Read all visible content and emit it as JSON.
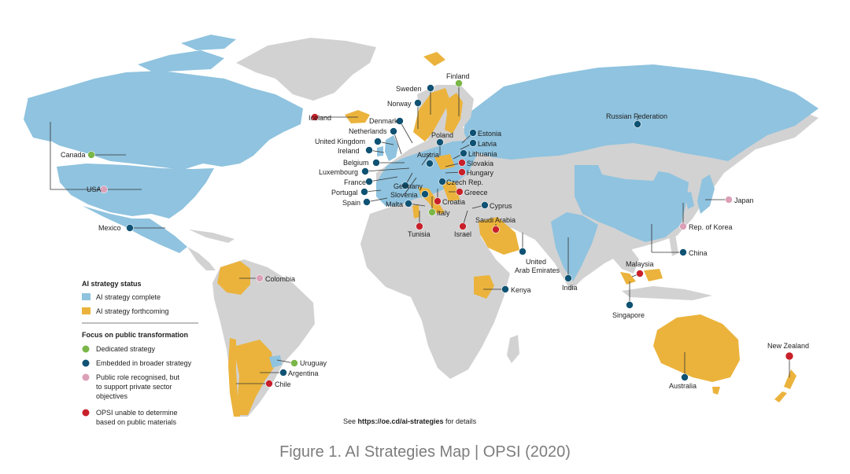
{
  "colors": {
    "land": "#d2d2d2",
    "complete": "#8fc3df",
    "forthcoming": "#ebb33c",
    "dedicated": "#7ab648",
    "embedded": "#0f5273",
    "public_role": "#dba0b7",
    "opsi_unable": "#c8202a",
    "leader_line": "#333333"
  },
  "legend": {
    "status_title": "AI strategy status",
    "complete": "AI strategy complete",
    "forthcoming": "AI strategy forthcoming",
    "focus_title": "Focus on public transformation",
    "dedicated": "Dedicated strategy",
    "embedded": "Embedded in broader strategy",
    "public_role_1": "Public role recognised, but",
    "public_role_2": "to support private sector",
    "public_role_3": "objectives",
    "opsi_1": "OPSI unable to determine",
    "opsi_2": "based on public materials"
  },
  "note": {
    "prefix": "See ",
    "link": "https://oe.cd/ai-strategies",
    "suffix": " for details"
  },
  "caption": "Figure 1. AI Strategies Map | OPSI (2020)",
  "countries": {
    "finland": {
      "name": "Finland",
      "focus": "dedicated"
    },
    "sweden": {
      "name": "Sweden",
      "focus": "embedded"
    },
    "norway": {
      "name": "Norway",
      "focus": "embedded"
    },
    "iceland": {
      "name": "Iceland",
      "focus": "opsi_unable"
    },
    "denmark": {
      "name": "Denmark",
      "focus": "embedded"
    },
    "netherlands": {
      "name": "Netherlands",
      "focus": "embedded"
    },
    "uk": {
      "name": "United Kingdom",
      "focus": "embedded"
    },
    "ireland": {
      "name": "Ireland",
      "focus": "embedded"
    },
    "belgium": {
      "name": "Belgium",
      "focus": "embedded"
    },
    "luxembourg": {
      "name": "Luxembourg",
      "focus": "embedded"
    },
    "france": {
      "name": "France",
      "focus": "embedded"
    },
    "portugal": {
      "name": "Portugal",
      "focus": "embedded"
    },
    "spain": {
      "name": "Spain",
      "focus": "embedded"
    },
    "germany": {
      "name": "Germany",
      "focus": "embedded"
    },
    "slovenia": {
      "name": "Slovenia",
      "focus": "embedded"
    },
    "malta": {
      "name": "Malta",
      "focus": "embedded"
    },
    "austria": {
      "name": "Austria",
      "focus": "embedded"
    },
    "poland": {
      "name": "Poland",
      "focus": "embedded"
    },
    "estonia": {
      "name": "Estonia",
      "focus": "embedded"
    },
    "latvia": {
      "name": "Latvia",
      "focus": "embedded"
    },
    "lithuania": {
      "name": "Lithuania",
      "focus": "embedded"
    },
    "slovakia": {
      "name": "Slovakia",
      "focus": "opsi_unable"
    },
    "hungary": {
      "name": "Hungary",
      "focus": "opsi_unable"
    },
    "czech": {
      "name": "Czech Rep.",
      "focus": "embedded"
    },
    "greece": {
      "name": "Greece",
      "focus": "opsi_unable"
    },
    "croatia": {
      "name": "Croatia",
      "focus": "opsi_unable"
    },
    "italy": {
      "name": "Italy",
      "focus": "dedicated"
    },
    "cyprus": {
      "name": "Cyprus",
      "focus": "embedded"
    },
    "tunisia": {
      "name": "Tunisia",
      "focus": "opsi_unable"
    },
    "israel": {
      "name": "Israel",
      "focus": "opsi_unable"
    },
    "saudi": {
      "name": "Saudi Arabia",
      "focus": "opsi_unable"
    },
    "uae_1": {
      "name": "United",
      "focus": "embedded"
    },
    "uae_2": {
      "name": "Arab Emirates"
    },
    "russia": {
      "name": "Russian Federation",
      "focus": "embedded"
    },
    "canada": {
      "name": "Canada",
      "focus": "dedicated"
    },
    "usa": {
      "name": "USA",
      "focus": "public_role"
    },
    "mexico": {
      "name": "Mexico",
      "focus": "embedded"
    },
    "colombia": {
      "name": "Colombia",
      "focus": "public_role"
    },
    "uruguay": {
      "name": "Uruguay",
      "focus": "dedicated"
    },
    "argentina": {
      "name": "Argentina",
      "focus": "embedded"
    },
    "chile": {
      "name": "Chile",
      "focus": "opsi_unable"
    },
    "kenya": {
      "name": "Kenya",
      "focus": "embedded"
    },
    "india": {
      "name": "India",
      "focus": "embedded"
    },
    "china": {
      "name": "China",
      "focus": "embedded"
    },
    "japan": {
      "name": "Japan",
      "focus": "public_role"
    },
    "korea": {
      "name": "Rep. of Korea",
      "focus": "public_role"
    },
    "malaysia": {
      "name": "Malaysia",
      "focus": "opsi_unable"
    },
    "singapore": {
      "name": "Singapore",
      "focus": "embedded"
    },
    "australia": {
      "name": "Australia",
      "focus": "embedded"
    },
    "new_zealand": {
      "name": "New Zealand",
      "focus": "opsi_unable"
    }
  }
}
